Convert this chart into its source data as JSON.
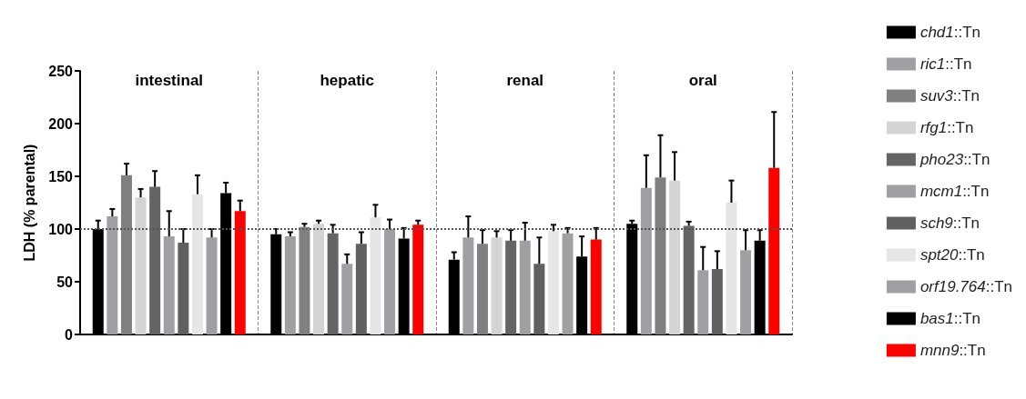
{
  "chart_data": {
    "type": "bar",
    "ylabel": "LDH (% parental)",
    "categories": [
      "intestinal",
      "hepatic",
      "renal",
      "oral"
    ],
    "ylim": [
      0,
      250
    ],
    "yticks": [
      0,
      50,
      100,
      150,
      200,
      250
    ],
    "grid": "x",
    "legend": "right",
    "ref_lines": [
      {
        "axis": "y",
        "value": 100,
        "color": "#555555",
        "line_style": "dotted"
      }
    ],
    "series": [
      {
        "name": "chd1::Tn",
        "color": "#000000",
        "values": [
          100,
          95,
          71,
          105
        ],
        "errors": [
          [
            100,
            108
          ],
          [
            95,
            100
          ],
          [
            71,
            78
          ],
          [
            105,
            108
          ]
        ]
      },
      {
        "name": "ric1::Tn",
        "color": "#a0a0a4",
        "values": [
          112,
          93,
          92,
          139
        ],
        "errors": [
          [
            112,
            119
          ],
          [
            93,
            97
          ],
          [
            92,
            112
          ],
          [
            139,
            170
          ]
        ]
      },
      {
        "name": "suv3::Tn",
        "color": "#808080",
        "values": [
          151,
          102,
          86,
          149
        ],
        "errors": [
          [
            151,
            162
          ],
          [
            102,
            105
          ],
          [
            86,
            99
          ],
          [
            149,
            189
          ]
        ]
      },
      {
        "name": "rfg1::Tn",
        "color": "#d4d4d4",
        "values": [
          130,
          105,
          92,
          146
        ],
        "errors": [
          [
            130,
            138
          ],
          [
            105,
            108
          ],
          [
            92,
            98
          ],
          [
            146,
            173
          ]
        ]
      },
      {
        "name": "pho23::Tn",
        "color": "#646464",
        "values": [
          140,
          96,
          89,
          103
        ],
        "errors": [
          [
            140,
            155
          ],
          [
            96,
            104
          ],
          [
            89,
            99
          ],
          [
            103,
            107
          ]
        ]
      },
      {
        "name": "mcm1::Tn",
        "color": "#a0a0a4",
        "values": [
          93,
          67,
          89,
          61
        ],
        "errors": [
          [
            93,
            117
          ],
          [
            67,
            76
          ],
          [
            89,
            106
          ],
          [
            61,
            83
          ]
        ]
      },
      {
        "name": "sch9::Tn",
        "color": "#606060",
        "values": [
          87,
          86,
          67,
          62
        ],
        "errors": [
          [
            87,
            100
          ],
          [
            86,
            97
          ],
          [
            67,
            92
          ],
          [
            62,
            79
          ]
        ]
      },
      {
        "name": "spt20::Tn",
        "color": "#e6e6e6",
        "values": [
          133,
          111,
          98,
          125
        ],
        "errors": [
          [
            133,
            151
          ],
          [
            111,
            123
          ],
          [
            98,
            104
          ],
          [
            125,
            146
          ]
        ]
      },
      {
        "name": "orf19.764::Tn",
        "color": "#a0a0a4",
        "values": [
          92,
          100,
          96,
          80
        ],
        "errors": [
          [
            92,
            100
          ],
          [
            100,
            109
          ],
          [
            96,
            101
          ],
          [
            80,
            99
          ]
        ]
      },
      {
        "name": "bas1::Tn",
        "color": "#000000",
        "values": [
          134,
          91,
          74,
          89
        ],
        "errors": [
          [
            134,
            144
          ],
          [
            91,
            101
          ],
          [
            74,
            93
          ],
          [
            89,
            99
          ]
        ]
      },
      {
        "name": "mnn9::Tn",
        "color": "#ff0000",
        "values": [
          117,
          104,
          90,
          158
        ],
        "errors": [
          [
            117,
            127
          ],
          [
            104,
            108
          ],
          [
            90,
            101
          ],
          [
            158,
            211
          ]
        ]
      }
    ]
  }
}
